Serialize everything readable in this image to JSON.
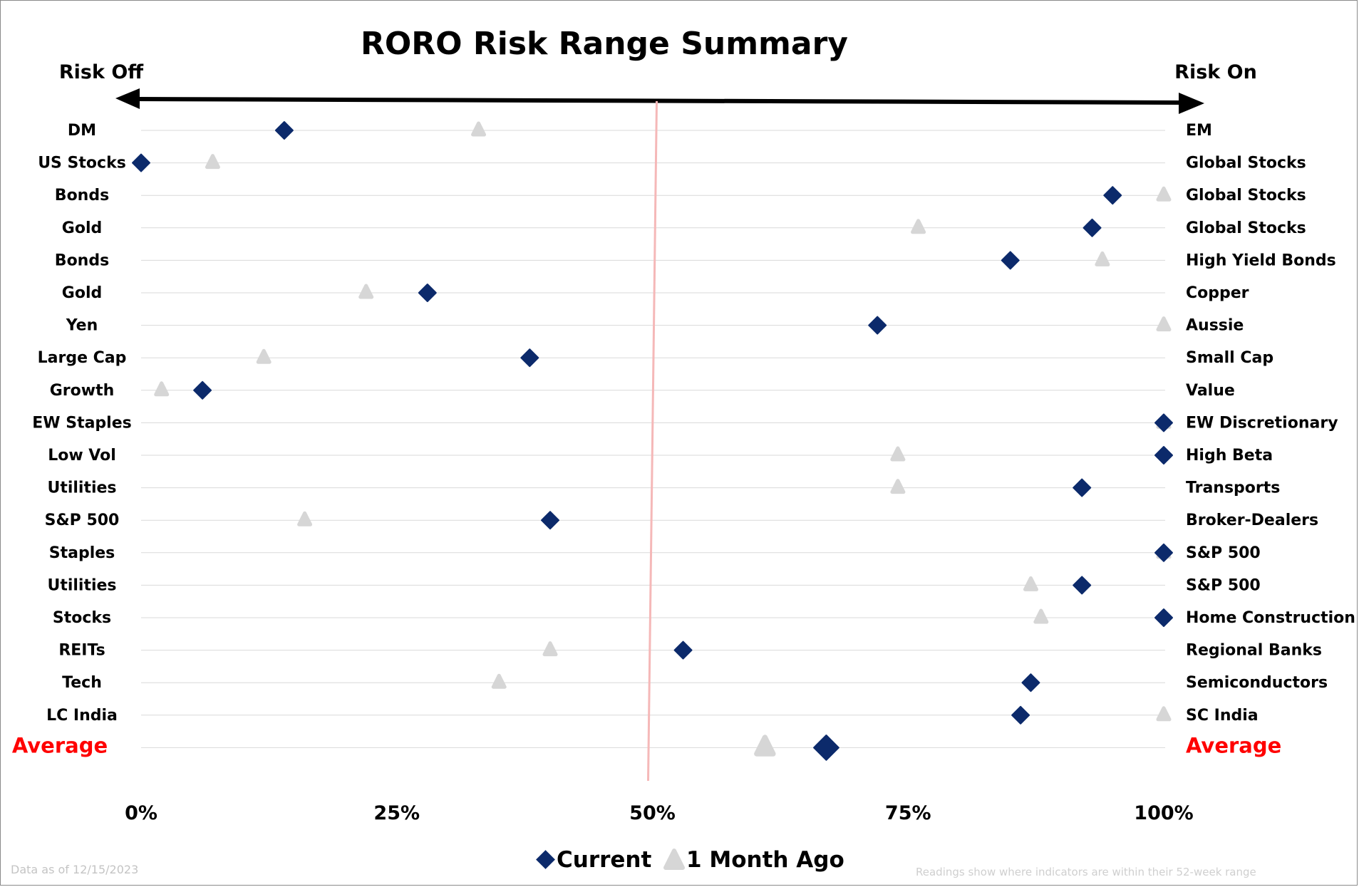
{
  "chart_data": {
    "type": "scatter",
    "title": "RORO Risk Range Summary",
    "left_end_label": "Risk Off",
    "right_end_label": "Risk On",
    "x_ticks": [
      "0%",
      "25%",
      "50%",
      "75%",
      "100%"
    ],
    "xlim": [
      0,
      100
    ],
    "reference_line": 50,
    "grid": true,
    "legend_position": "bottom",
    "legend": {
      "current": "Current",
      "month_ago": "1 Month Ago"
    },
    "footnote_left": "Data as of 12/15/2023",
    "footnote_right": "Readings show where indicators are within their 52-week range",
    "colors": {
      "current": "#0c2a6b",
      "month_ago": "#d6d6d6",
      "average_label": "#ff0000",
      "reference_line": "#f5b8b8",
      "grid": "#d9d9d9"
    },
    "rows": [
      {
        "left": "DM",
        "right": "EM",
        "current": 14,
        "month_ago": 33
      },
      {
        "left": "US Stocks",
        "right": "Global Stocks",
        "current": 0,
        "month_ago": 7
      },
      {
        "left": "Bonds",
        "right": "Global Stocks",
        "current": 95,
        "month_ago": 100
      },
      {
        "left": "Gold",
        "right": "Global Stocks",
        "current": 93,
        "month_ago": 76
      },
      {
        "left": "Bonds",
        "right": "High Yield Bonds",
        "current": 85,
        "month_ago": 94
      },
      {
        "left": "Gold",
        "right": "Copper",
        "current": 28,
        "month_ago": 22
      },
      {
        "left": "Yen",
        "right": "Aussie",
        "current": 72,
        "month_ago": 100
      },
      {
        "left": "Large Cap",
        "right": "Small Cap",
        "current": 38,
        "month_ago": 12
      },
      {
        "left": "Growth",
        "right": "Value",
        "current": 6,
        "month_ago": 2
      },
      {
        "left": "EW Staples",
        "right": "EW Discretionary",
        "current": 100,
        "month_ago": 100
      },
      {
        "left": "Low Vol",
        "right": "High Beta",
        "current": 100,
        "month_ago": 74
      },
      {
        "left": "Utilities",
        "right": "Transports",
        "current": 92,
        "month_ago": 74
      },
      {
        "left": "S&P 500",
        "right": "Broker-Dealers",
        "current": 40,
        "month_ago": 16
      },
      {
        "left": "Staples",
        "right": "S&P 500",
        "current": 100,
        "month_ago": 100
      },
      {
        "left": "Utilities",
        "right": "S&P 500",
        "current": 92,
        "month_ago": 87
      },
      {
        "left": "Stocks",
        "right": "Home Construction",
        "current": 100,
        "month_ago": 88
      },
      {
        "left": "REITs",
        "right": "Regional Banks",
        "current": 53,
        "month_ago": 40
      },
      {
        "left": "Tech",
        "right": "Semiconductors",
        "current": 87,
        "month_ago": 35
      },
      {
        "left": "LC India",
        "right": "SC India",
        "current": 86,
        "month_ago": 100
      },
      {
        "left": "Average",
        "right": "Average",
        "current": 67,
        "month_ago": 61
      }
    ]
  }
}
